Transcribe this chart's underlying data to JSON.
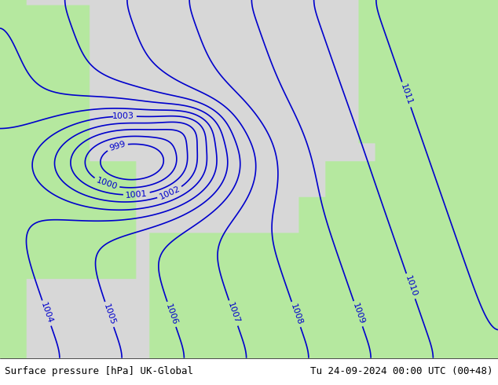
{
  "title_left": "Surface pressure [hPa] UK-Global",
  "title_right": "Tu 24-09-2024 00:00 UTC (00+48)",
  "footer_bg": "#ffffff",
  "land_color": "#b5e8a0",
  "sea_color": "#d8d8d8",
  "contour_color": "#0000cc",
  "contour_linewidth": 1.2,
  "label_fontsize": 8,
  "footer_fontsize": 9,
  "pressure_levels": [
    999,
    1000,
    1001,
    1002,
    1003,
    1004,
    1005,
    1006,
    1007,
    1008,
    1009,
    1010,
    1011
  ],
  "figsize": [
    6.34,
    4.9
  ],
  "dpi": 100
}
